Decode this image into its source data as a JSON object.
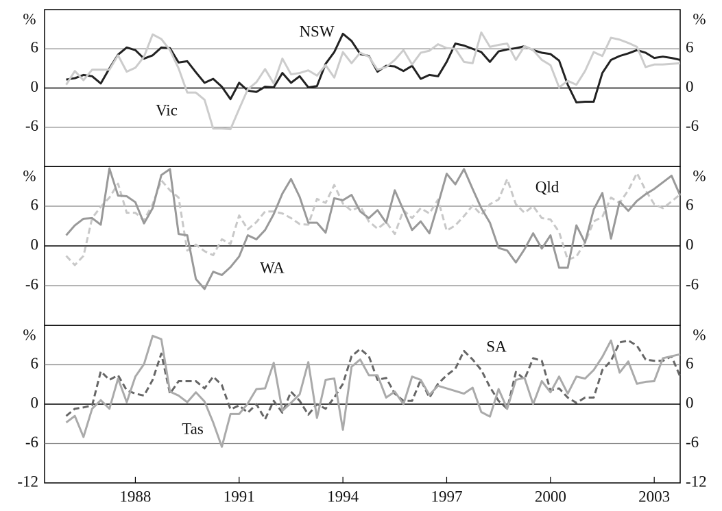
{
  "chart_data": [
    {
      "type": "line",
      "y_label": "%",
      "x": [
        1986,
        1986.25,
        1986.5,
        1986.75,
        1987,
        1987.25,
        1987.5,
        1987.75,
        1988,
        1988.25,
        1988.5,
        1988.75,
        1989,
        1989.25,
        1989.5,
        1989.75,
        1990,
        1990.25,
        1990.5,
        1990.75,
        1991,
        1991.25,
        1991.5,
        1991.75,
        1992,
        1992.25,
        1992.5,
        1992.75,
        1993,
        1993.25,
        1993.5,
        1993.75,
        1994,
        1994.25,
        1994.5,
        1994.75,
        1995,
        1995.25,
        1995.5,
        1995.75,
        1996,
        1996.25,
        1996.5,
        1996.75,
        1997,
        1997.25,
        1997.5,
        1997.75,
        1998,
        1998.25,
        1998.5,
        1998.75,
        1999,
        1999.25,
        1999.5,
        1999.75,
        2000,
        2000.25,
        2000.5,
        2000.75,
        2001,
        2001.25,
        2001.5,
        2001.75,
        2002,
        2002.25,
        2002.5,
        2002.75,
        2003,
        2003.25,
        2003.5,
        2003.75
      ],
      "xlim": [
        1985.375,
        2003.75
      ],
      "ylim": [
        -12,
        12
      ],
      "yticks": [
        -6,
        0,
        6
      ],
      "grid": true,
      "series": [
        {
          "name": "NSW",
          "color": "#222222",
          "style": "solid",
          "values": [
            1.3,
            1.5,
            2.0,
            1.8,
            0.7,
            3.0,
            5.1,
            6.2,
            5.8,
            4.5,
            5.0,
            6.2,
            6.1,
            3.9,
            4.1,
            2.4,
            0.8,
            1.4,
            0.2,
            -1.7,
            0.8,
            -0.4,
            -0.6,
            0.2,
            0.1,
            2.3,
            0.8,
            1.8,
            0.1,
            0.3,
            3.7,
            5.5,
            8.3,
            7.2,
            5.2,
            4.9,
            2.5,
            3.4,
            3.3,
            2.6,
            3.4,
            1.4,
            2.0,
            1.8,
            4.0,
            6.8,
            6.5,
            6.0,
            5.5,
            4.0,
            5.6,
            5.9,
            6.1,
            6.4,
            5.8,
            5.4,
            5.2,
            4.2,
            0.5,
            -2.2,
            -2.1,
            -2.1,
            2.3,
            4.3,
            4.9,
            5.3,
            5.8,
            5.4,
            4.6,
            4.8,
            4.6,
            4.3
          ]
        },
        {
          "name": "Vic",
          "color": "#cccccc",
          "style": "solid",
          "values": [
            0.5,
            2.6,
            1.2,
            2.8,
            2.8,
            2.8,
            5.0,
            2.5,
            3.1,
            4.8,
            8.2,
            7.5,
            5.8,
            3.0,
            -0.7,
            -0.7,
            -1.8,
            -6.2,
            -6.2,
            -6.3,
            -3.2,
            -0.2,
            0.9,
            2.9,
            0.7,
            4.5,
            2.1,
            2.3,
            2.7,
            1.9,
            3.5,
            1.6,
            5.5,
            3.8,
            5.4,
            4.8,
            2.8,
            3.2,
            4.3,
            5.8,
            3.6,
            5.4,
            5.7,
            6.7,
            6.1,
            6.0,
            4.0,
            3.8,
            8.5,
            6.3,
            6.6,
            6.8,
            4.3,
            6.4,
            5.8,
            4.3,
            3.5,
            0.1,
            1.1,
            0.5,
            2.6,
            5.5,
            4.9,
            7.7,
            7.4,
            6.9,
            6.3,
            3.2,
            3.6,
            3.6,
            3.7,
            3.8
          ]
        }
      ]
    },
    {
      "type": "line",
      "y_label": "%",
      "x": [
        1986,
        1986.25,
        1986.5,
        1986.75,
        1987,
        1987.25,
        1987.5,
        1987.75,
        1988,
        1988.25,
        1988.5,
        1988.75,
        1989,
        1989.25,
        1989.5,
        1989.75,
        1990,
        1990.25,
        1990.5,
        1990.75,
        1991,
        1991.25,
        1991.5,
        1991.75,
        1992,
        1992.25,
        1992.5,
        1992.75,
        1993,
        1993.25,
        1993.5,
        1993.75,
        1994,
        1994.25,
        1994.5,
        1994.75,
        1995,
        1995.25,
        1995.5,
        1995.75,
        1996,
        1996.25,
        1996.5,
        1996.75,
        1997,
        1997.25,
        1997.5,
        1997.75,
        1998,
        1998.25,
        1998.5,
        1998.75,
        1999,
        1999.25,
        1999.5,
        1999.75,
        2000,
        2000.25,
        2000.5,
        2000.75,
        2001,
        2001.25,
        2001.5,
        2001.75,
        2002,
        2002.25,
        2002.5,
        2002.75,
        2003,
        2003.25,
        2003.5,
        2003.75
      ],
      "xlim": [
        1985.375,
        2003.75
      ],
      "ylim": [
        -12,
        12
      ],
      "yticks": [
        -6,
        0,
        6
      ],
      "grid": true,
      "series": [
        {
          "name": "Qld",
          "color": "#c8c8c8",
          "style": "dashed",
          "values": [
            -1.5,
            -2.9,
            -1.5,
            4.2,
            5.9,
            7.3,
            9.4,
            5.0,
            5.0,
            3.9,
            6.3,
            9.9,
            8.4,
            7.3,
            -0.7,
            0.2,
            -0.8,
            -1.4,
            1.0,
            0.3,
            4.6,
            2.5,
            3.6,
            5.2,
            5.2,
            4.9,
            4.2,
            3.3,
            3.2,
            7.1,
            6.5,
            9.2,
            6.4,
            5.3,
            6.0,
            3.7,
            2.6,
            3.6,
            1.8,
            5.4,
            4.2,
            5.7,
            4.9,
            7.0,
            2.3,
            3.1,
            4.5,
            6.1,
            4.7,
            6.3,
            7.0,
            10.1,
            6.3,
            5.0,
            6.0,
            4.2,
            4.0,
            2.1,
            -2.1,
            -1.6,
            0.5,
            3.7,
            4.4,
            7.3,
            6.5,
            8.4,
            11.0,
            8.4,
            6.3,
            5.7,
            6.7,
            7.8
          ]
        },
        {
          "name": "WA",
          "color": "#999999",
          "style": "solid",
          "values": [
            1.6,
            3.1,
            4.1,
            4.2,
            3.2,
            11.7,
            7.6,
            7.5,
            6.6,
            3.4,
            5.7,
            10.7,
            11.6,
            1.8,
            1.6,
            -5.0,
            -6.5,
            -3.9,
            -4.4,
            -3.2,
            -1.6,
            1.6,
            1.0,
            2.4,
            4.8,
            7.9,
            10.1,
            7.4,
            3.5,
            3.5,
            2.0,
            7.2,
            6.9,
            7.7,
            5.2,
            4.2,
            5.4,
            3.5,
            8.4,
            5.4,
            2.4,
            3.7,
            1.9,
            6.3,
            10.9,
            9.3,
            11.6,
            8.6,
            5.7,
            3.5,
            -0.3,
            -0.7,
            -2.5,
            -0.5,
            1.9,
            -0.4,
            1.6,
            -3.3,
            -3.3,
            3.1,
            0.5,
            5.5,
            8.0,
            1.1,
            6.7,
            5.3,
            6.8,
            7.8,
            8.6,
            9.6,
            10.6,
            7.6
          ]
        }
      ]
    },
    {
      "type": "line",
      "y_label": "%",
      "x": [
        1986,
        1986.25,
        1986.5,
        1986.75,
        1987,
        1987.25,
        1987.5,
        1987.75,
        1988,
        1988.25,
        1988.5,
        1988.75,
        1989,
        1989.25,
        1989.5,
        1989.75,
        1990,
        1990.25,
        1990.5,
        1990.75,
        1991,
        1991.25,
        1991.5,
        1991.75,
        1992,
        1992.25,
        1992.5,
        1992.75,
        1993,
        1993.25,
        1993.5,
        1993.75,
        1994,
        1994.25,
        1994.5,
        1994.75,
        1995,
        1995.25,
        1995.5,
        1995.75,
        1996,
        1996.25,
        1996.5,
        1996.75,
        1997,
        1997.25,
        1997.5,
        1997.75,
        1998,
        1998.25,
        1998.5,
        1998.75,
        1999,
        1999.25,
        1999.5,
        1999.75,
        2000,
        2000.25,
        2000.5,
        2000.75,
        2001,
        2001.25,
        2001.5,
        2001.75,
        2002,
        2002.25,
        2002.5,
        2002.75,
        2003,
        2003.25,
        2003.5,
        2003.75
      ],
      "xlim": [
        1985.375,
        2003.75
      ],
      "xticks": [
        1988,
        1991,
        1994,
        1997,
        2000,
        2003
      ],
      "ylim": [
        -12,
        12
      ],
      "yticks": [
        -12,
        -6,
        0,
        6
      ],
      "grid": true,
      "series": [
        {
          "name": "SA",
          "color": "#666666",
          "style": "dashed",
          "values": [
            -1.8,
            -0.7,
            -0.5,
            -0.2,
            5.0,
            3.7,
            4.4,
            2.1,
            1.6,
            1.3,
            3.7,
            7.7,
            1.6,
            3.5,
            3.5,
            3.5,
            2.4,
            4.2,
            2.9,
            -0.8,
            -0.2,
            -1.3,
            0.0,
            -2.3,
            0.5,
            -1.3,
            1.9,
            0.5,
            -1.6,
            0.0,
            -0.7,
            1.0,
            3.1,
            7.3,
            8.4,
            7.3,
            3.7,
            4.0,
            1.6,
            0.5,
            0.5,
            3.7,
            1.0,
            3.1,
            4.4,
            5.4,
            8.1,
            6.8,
            5.2,
            2.6,
            0.5,
            -0.7,
            4.9,
            3.8,
            7.0,
            6.6,
            2.1,
            2.4,
            1.0,
            0.2,
            1.0,
            1.0,
            5.2,
            6.6,
            9.4,
            9.7,
            8.9,
            6.8,
            6.6,
            6.6,
            7.3,
            4.2
          ]
        },
        {
          "name": "Tas",
          "color": "#aaaaaa",
          "style": "solid",
          "values": [
            -2.8,
            -1.8,
            -5.0,
            -0.7,
            0.6,
            -0.7,
            3.9,
            0.3,
            4.2,
            6.1,
            10.4,
            9.9,
            1.9,
            1.3,
            0.3,
            1.8,
            0.4,
            -2.8,
            -6.5,
            -1.5,
            -1.5,
            0.1,
            2.3,
            2.4,
            6.3,
            -1.0,
            0.2,
            1.5,
            6.4,
            -2.1,
            3.7,
            3.9,
            -3.9,
            5.7,
            6.8,
            4.4,
            4.4,
            1.0,
            1.9,
            0.0,
            4.2,
            3.7,
            1.4,
            2.8,
            2.4,
            2.0,
            1.6,
            2.5,
            -1.2,
            -1.9,
            2.3,
            -0.7,
            3.7,
            4.0,
            0.0,
            3.5,
            1.8,
            4.2,
            1.6,
            4.2,
            3.9,
            5.2,
            7.2,
            9.7,
            4.8,
            6.5,
            3.1,
            3.4,
            3.5,
            7.0,
            7.3,
            7.6
          ]
        }
      ]
    }
  ]
}
